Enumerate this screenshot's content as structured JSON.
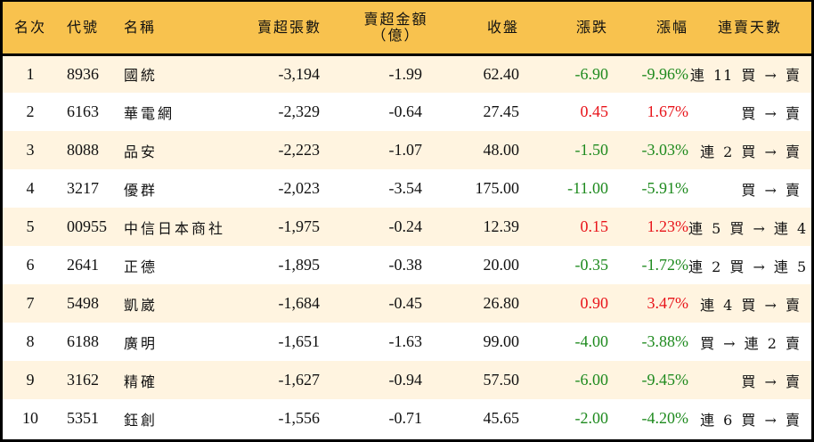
{
  "table": {
    "headers": {
      "rank": "名次",
      "code": "代號",
      "name": "名稱",
      "net_sell_shares": "賣超張數",
      "net_sell_amount_line1": "賣超金額",
      "net_sell_amount_line2": "（億）",
      "close": "收盤",
      "change": "漲跌",
      "change_pct": "漲幅",
      "streak": "連賣天數"
    },
    "rows": [
      {
        "rank": "1",
        "code": "8936",
        "name": "國統",
        "shares": "-3,194",
        "amount": "-1.99",
        "close": "62.40",
        "change": "-6.90",
        "pct": "-9.96%",
        "direction": "down",
        "streak": "連 11 買 → 賣"
      },
      {
        "rank": "2",
        "code": "6163",
        "name": "華電網",
        "shares": "-2,329",
        "amount": "-0.64",
        "close": "27.45",
        "change": "0.45",
        "pct": "1.67%",
        "direction": "up",
        "streak": "買 → 賣"
      },
      {
        "rank": "3",
        "code": "8088",
        "name": "品安",
        "shares": "-2,223",
        "amount": "-1.07",
        "close": "48.00",
        "change": "-1.50",
        "pct": "-3.03%",
        "direction": "down",
        "streak": "連 2 買 → 賣"
      },
      {
        "rank": "4",
        "code": "3217",
        "name": "優群",
        "shares": "-2,023",
        "amount": "-3.54",
        "close": "175.00",
        "change": "-11.00",
        "pct": "-5.91%",
        "direction": "down",
        "streak": "買 → 賣"
      },
      {
        "rank": "5",
        "code": "00955",
        "name": "中信日本商社",
        "shares": "-1,975",
        "amount": "-0.24",
        "close": "12.39",
        "change": "0.15",
        "pct": "1.23%",
        "direction": "up",
        "streak": "連 5 買 → 連 4 賣"
      },
      {
        "rank": "6",
        "code": "2641",
        "name": "正德",
        "shares": "-1,895",
        "amount": "-0.38",
        "close": "20.00",
        "change": "-0.35",
        "pct": "-1.72%",
        "direction": "down",
        "streak": "連 2 買 → 連 5 賣"
      },
      {
        "rank": "7",
        "code": "5498",
        "name": "凱崴",
        "shares": "-1,684",
        "amount": "-0.45",
        "close": "26.80",
        "change": "0.90",
        "pct": "3.47%",
        "direction": "up",
        "streak": "連 4 買 → 賣"
      },
      {
        "rank": "8",
        "code": "6188",
        "name": "廣明",
        "shares": "-1,651",
        "amount": "-1.63",
        "close": "99.00",
        "change": "-4.00",
        "pct": "-3.88%",
        "direction": "down",
        "streak": "買 → 連 2 賣"
      },
      {
        "rank": "9",
        "code": "3162",
        "name": "精確",
        "shares": "-1,627",
        "amount": "-0.94",
        "close": "57.50",
        "change": "-6.00",
        "pct": "-9.45%",
        "direction": "down",
        "streak": "買 → 賣"
      },
      {
        "rank": "10",
        "code": "5351",
        "name": "鈺創",
        "shares": "-1,556",
        "amount": "-0.71",
        "close": "45.65",
        "change": "-2.00",
        "pct": "-4.20%",
        "direction": "down",
        "streak": "連 6 買 → 賣"
      }
    ]
  },
  "colors": {
    "header_bg": "#F8C24E",
    "row_alt_bg": "#FFF4E0",
    "row_bg": "#FFFFFF",
    "up": "#E8141A",
    "down": "#1E8A1E",
    "border": "#000000"
  }
}
